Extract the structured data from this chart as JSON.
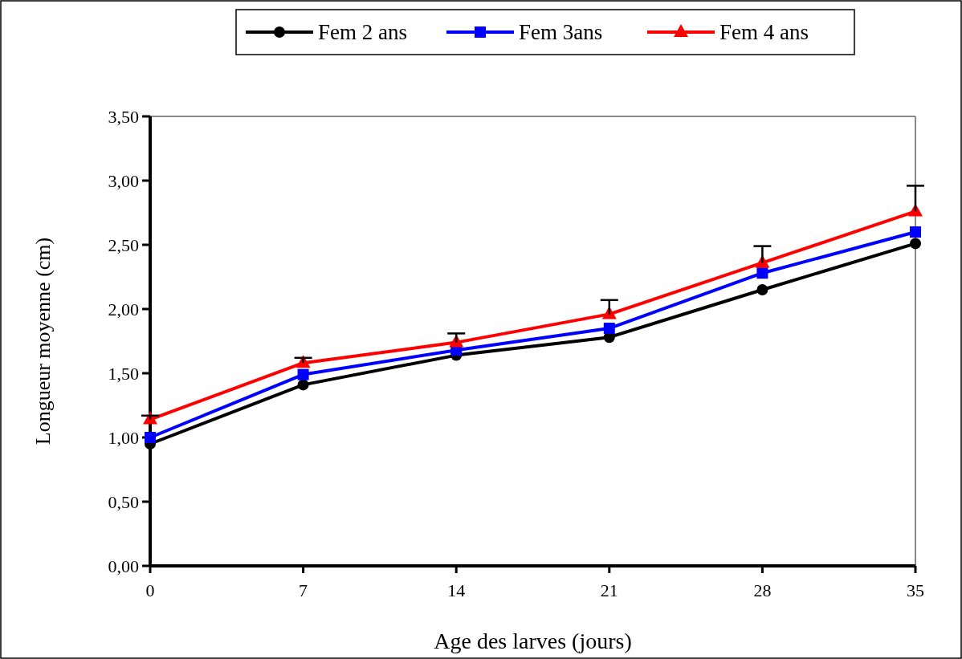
{
  "chart_data": {
    "type": "line",
    "xlabel": "Age des larves (jours)",
    "ylabel": "Longueur moyenne (cm)",
    "x": [
      0,
      7,
      14,
      21,
      28,
      35
    ],
    "xlim": [
      0,
      35
    ],
    "xticks": [
      0,
      7,
      14,
      21,
      28,
      35
    ],
    "ylim": [
      0,
      3.5
    ],
    "yticks": [
      {
        "value": 0,
        "label": "0,00"
      },
      {
        "value": 0.5,
        "label": "0,50"
      },
      {
        "value": 1,
        "label": "1,00"
      },
      {
        "value": 1.5,
        "label": "1,50"
      },
      {
        "value": 2,
        "label": "2,00"
      },
      {
        "value": 2.5,
        "label": "2,50"
      },
      {
        "value": 3,
        "label": "3,00"
      },
      {
        "value": 3.5,
        "label": "3,50"
      }
    ],
    "grid": false,
    "legend": "top",
    "series": [
      {
        "name": "Fem 2 ans",
        "color": "#000000",
        "marker": "circle",
        "values": [
          0.95,
          1.41,
          1.64,
          1.78,
          2.15,
          2.51
        ]
      },
      {
        "name": "Fem 3ans",
        "color": "#0000ff",
        "marker": "square",
        "values": [
          1.0,
          1.49,
          1.68,
          1.85,
          2.28,
          2.6
        ]
      },
      {
        "name": "Fem 4 ans",
        "color": "#ff0000",
        "marker": "triangle",
        "values": [
          1.14,
          1.58,
          1.74,
          1.96,
          2.36,
          2.76
        ],
        "errors": [
          [
            1.14,
            1.17
          ],
          [
            1.58,
            1.62
          ],
          [
            1.74,
            1.81
          ],
          [
            1.96,
            2.07
          ],
          [
            2.36,
            2.49
          ],
          [
            2.76,
            2.96
          ]
        ]
      }
    ]
  }
}
